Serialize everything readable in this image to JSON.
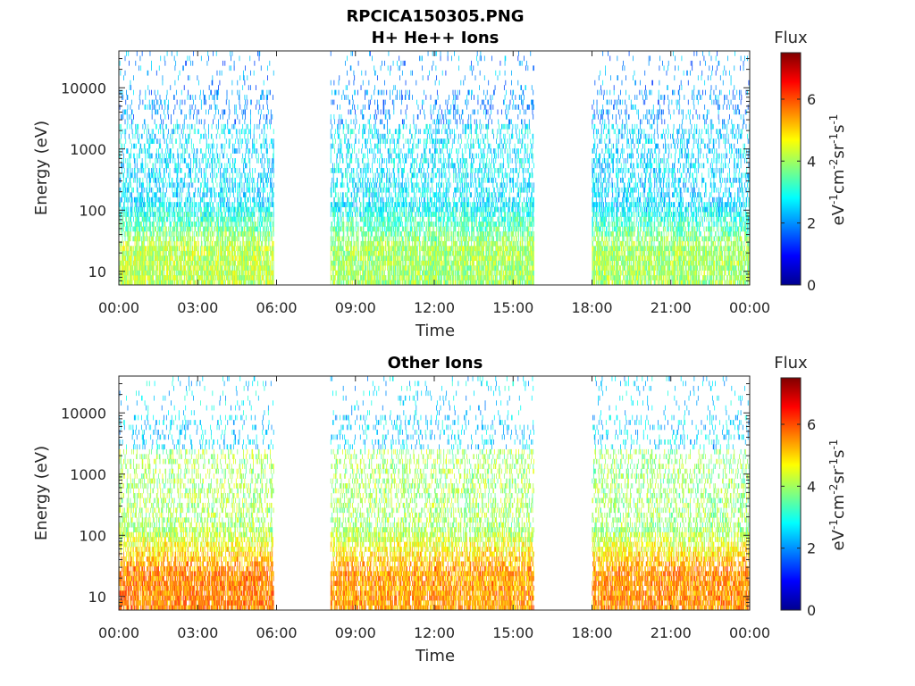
{
  "figure_title": "RPCICA150305.PNG",
  "colors": {
    "axis": "#262626",
    "colormap": "jet"
  },
  "chart_data": [
    {
      "type": "heatmap",
      "title": "H+ He++ Ions",
      "xlabel": "Time",
      "ylabel": "Energy (eV)",
      "x_ticks": [
        "00:00",
        "03:00",
        "06:00",
        "09:00",
        "12:00",
        "15:00",
        "18:00",
        "21:00",
        "00:00"
      ],
      "xlim_hours": [
        0,
        24
      ],
      "y_scale": "log",
      "y_ticks": [
        "10",
        "100",
        "1000",
        "10000"
      ],
      "ylim": [
        6,
        40000
      ],
      "colorbar": {
        "title": "Flux",
        "units": "eV-1cm-2sr-1s-1",
        "ticks": [
          "0",
          "2",
          "4",
          "6"
        ],
        "range": [
          0,
          7.5
        ]
      },
      "data_gaps_hours": [
        [
          6.0,
          8.05
        ],
        [
          15.8,
          18.0
        ]
      ],
      "segments": [
        {
          "start_hour": 0.0,
          "end_hour": 5.9,
          "low_energy_flux": 4.2,
          "mid_energy_flux": 2.6,
          "high_energy_flux": 2.0
        },
        {
          "start_hour": 8.05,
          "end_hour": 15.8,
          "low_energy_flux": 4.0,
          "mid_energy_flux": 2.7,
          "high_energy_flux": 2.0
        },
        {
          "start_hour": 18.0,
          "end_hour": 24.0,
          "low_energy_flux": 4.0,
          "mid_energy_flux": 2.5,
          "high_energy_flux": 2.0
        }
      ]
    },
    {
      "type": "heatmap",
      "title": "Other Ions",
      "xlabel": "Time",
      "ylabel": "Energy (eV)",
      "x_ticks": [
        "00:00",
        "03:00",
        "06:00",
        "09:00",
        "12:00",
        "15:00",
        "18:00",
        "21:00",
        "00:00"
      ],
      "xlim_hours": [
        0,
        24
      ],
      "y_scale": "log",
      "y_ticks": [
        "10",
        "100",
        "1000",
        "10000"
      ],
      "ylim": [
        6,
        40000
      ],
      "colorbar": {
        "title": "Flux",
        "units": "eV-1cm-2sr-1s-1",
        "ticks": [
          "0",
          "2",
          "4",
          "6"
        ],
        "range": [
          0,
          7.5
        ]
      },
      "data_gaps_hours": [
        [
          6.0,
          8.05
        ],
        [
          15.8,
          18.0
        ]
      ],
      "segments": [
        {
          "start_hour": 0.0,
          "end_hour": 5.9,
          "low_energy_flux": 5.6,
          "mid_energy_flux": 4.0,
          "high_energy_flux": 2.5
        },
        {
          "start_hour": 8.05,
          "end_hour": 15.8,
          "low_energy_flux": 5.4,
          "mid_energy_flux": 4.0,
          "high_energy_flux": 2.5
        },
        {
          "start_hour": 18.0,
          "end_hour": 24.0,
          "low_energy_flux": 5.5,
          "mid_energy_flux": 3.9,
          "high_energy_flux": 2.5
        }
      ]
    }
  ]
}
